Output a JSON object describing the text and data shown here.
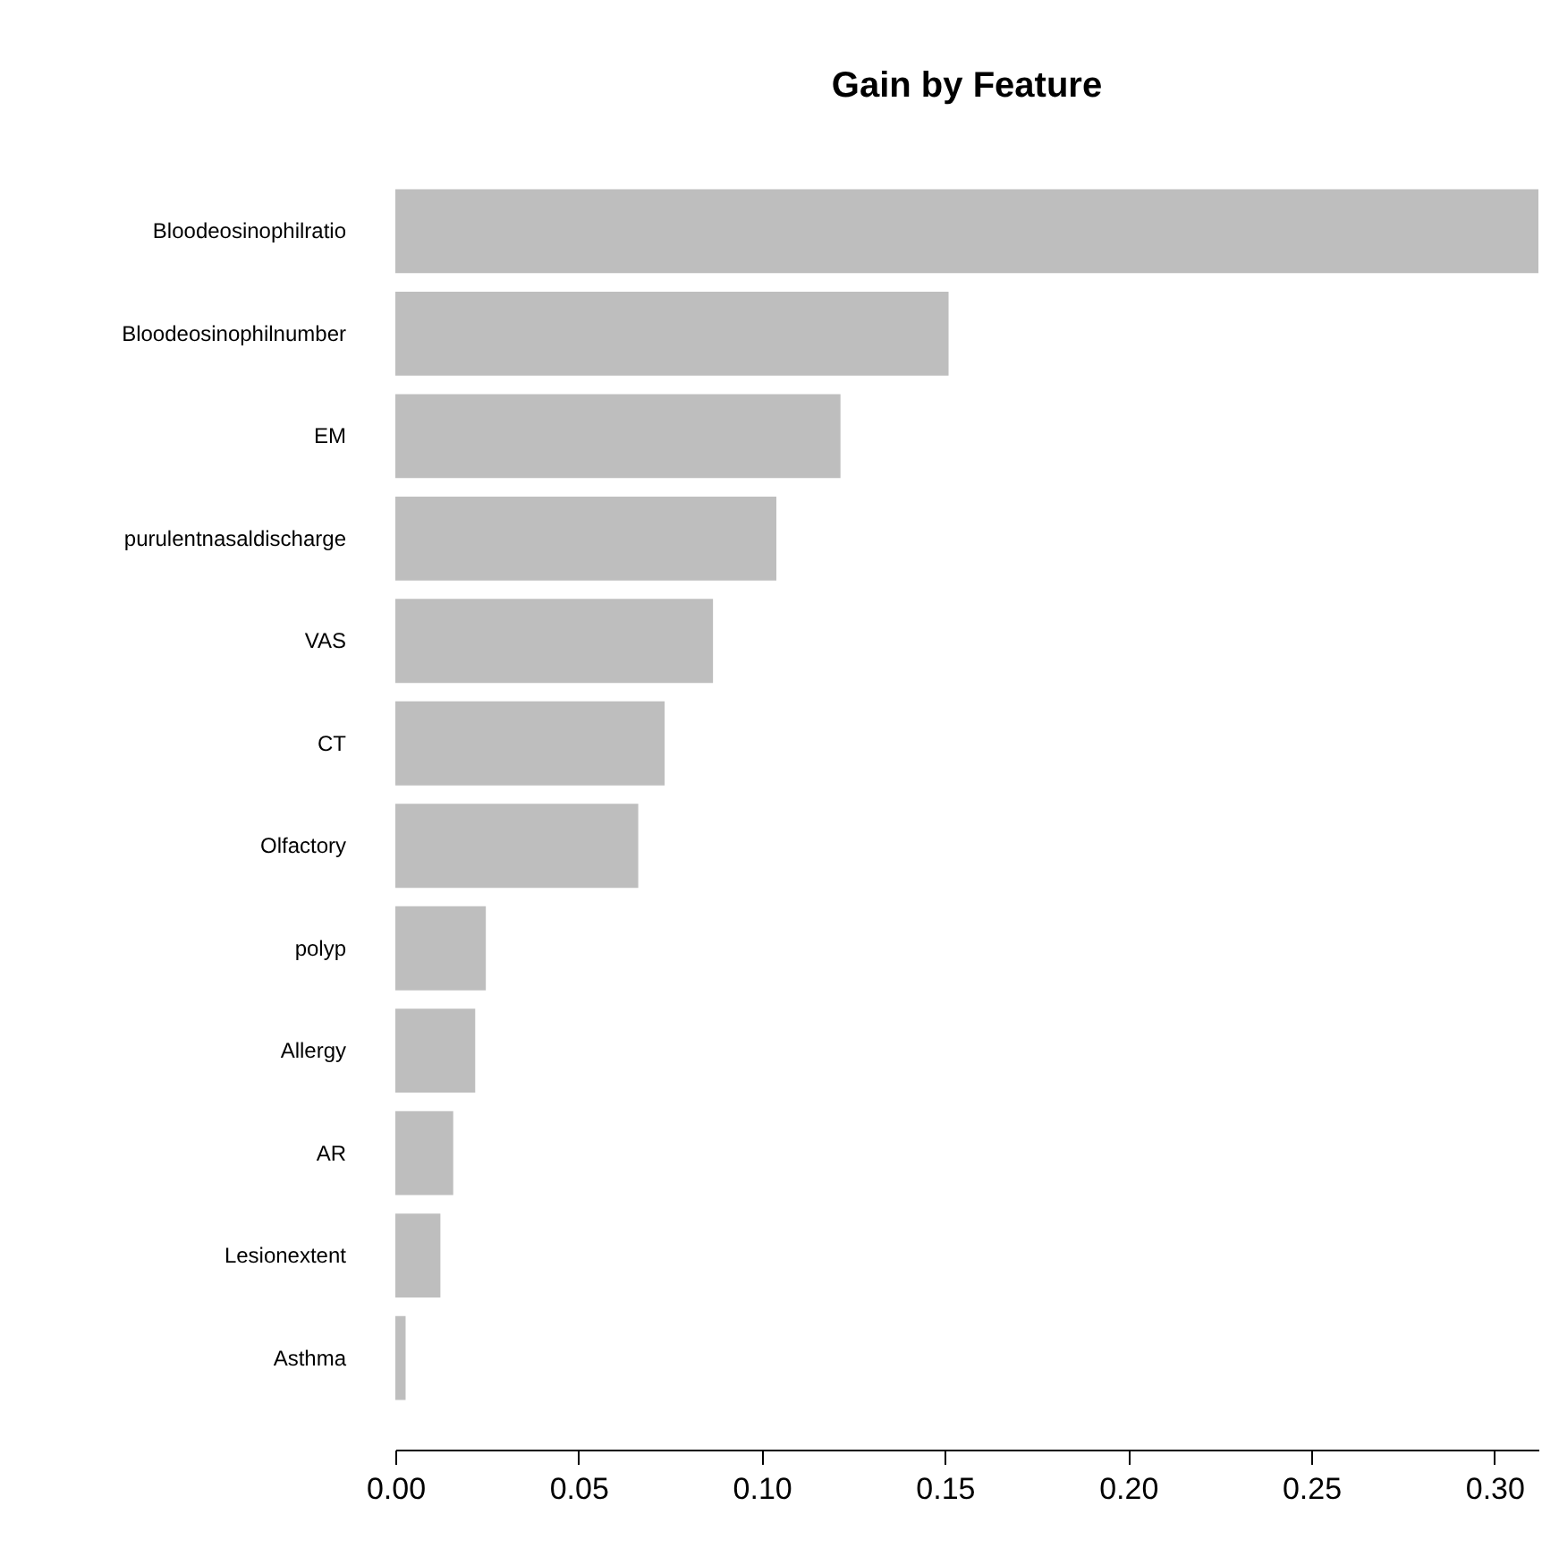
{
  "chart_data": {
    "type": "bar",
    "orientation": "horizontal",
    "title": "Gain by Feature",
    "categories": [
      "Bloodeosinophilratio",
      "Bloodeosinophilnumber",
      "EM",
      "purulentnasaldischarge",
      "VAS",
      "CT",
      "Olfactory",
      "polyp",
      "Allergy",
      "AR",
      "Lesionextent",
      "Asthma"
    ],
    "values": [
      0.312,
      0.151,
      0.1215,
      0.104,
      0.0867,
      0.0735,
      0.0663,
      0.0247,
      0.0218,
      0.0158,
      0.0123,
      0.0028
    ],
    "color": "#bebebe",
    "xlim": [
      0,
      0.312
    ],
    "xticks": [
      {
        "value": 0,
        "label": "0.00"
      },
      {
        "value": 0.05,
        "label": "0.05"
      },
      {
        "value": 0.1,
        "label": "0.10"
      },
      {
        "value": 0.15,
        "label": "0.15"
      },
      {
        "value": 0.2,
        "label": "0.20"
      },
      {
        "value": 0.25,
        "label": "0.25"
      },
      {
        "value": 0.3,
        "label": "0.30"
      }
    ],
    "grid": false
  }
}
